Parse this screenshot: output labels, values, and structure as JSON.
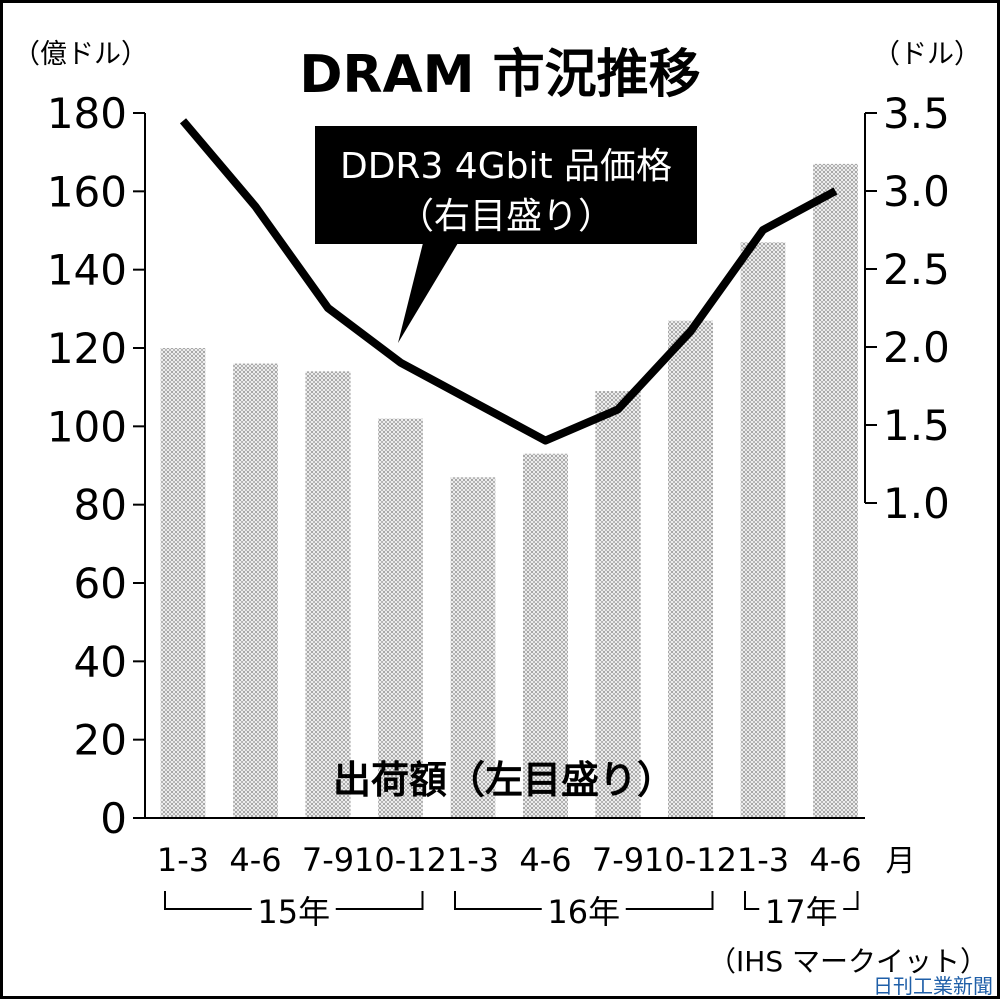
{
  "chart_data": {
    "type": "bar+line",
    "title": "DRAM 市況推移",
    "left_unit": "（億ドル）",
    "right_unit": "（ドル）",
    "categories": [
      "1-3",
      "4-6",
      "7-9",
      "10-12",
      "1-3",
      "4-6",
      "7-9",
      "10-12",
      "1-3",
      "4-6"
    ],
    "x_suffix": "月",
    "year_groups": [
      {
        "label": "15年",
        "start": 0,
        "end": 3
      },
      {
        "label": "16年",
        "start": 4,
        "end": 7
      },
      {
        "label": "17年",
        "start": 8,
        "end": 9
      }
    ],
    "bar_series": {
      "label": "出荷額（左目盛り）",
      "values": [
        120,
        116,
        114,
        102,
        87,
        93,
        109,
        127,
        147,
        167
      ]
    },
    "line_series": {
      "label_line1": "DDR3 4Gbit 品価格",
      "label_line2": "（右目盛り）",
      "values": [
        3.45,
        2.9,
        2.25,
        1.9,
        1.65,
        1.4,
        1.6,
        2.1,
        2.75,
        3.0
      ]
    },
    "left_axis": {
      "ticks": [
        0,
        20,
        40,
        60,
        80,
        100,
        120,
        140,
        160,
        180
      ],
      "min": 0,
      "max": 180
    },
    "right_axis": {
      "ticks": [
        1.0,
        1.5,
        2.0,
        2.5,
        3.0,
        3.5
      ],
      "min": 1.0,
      "max": 3.5
    },
    "source": "（IHS マークイット）",
    "credit": "日刊工業新聞"
  }
}
